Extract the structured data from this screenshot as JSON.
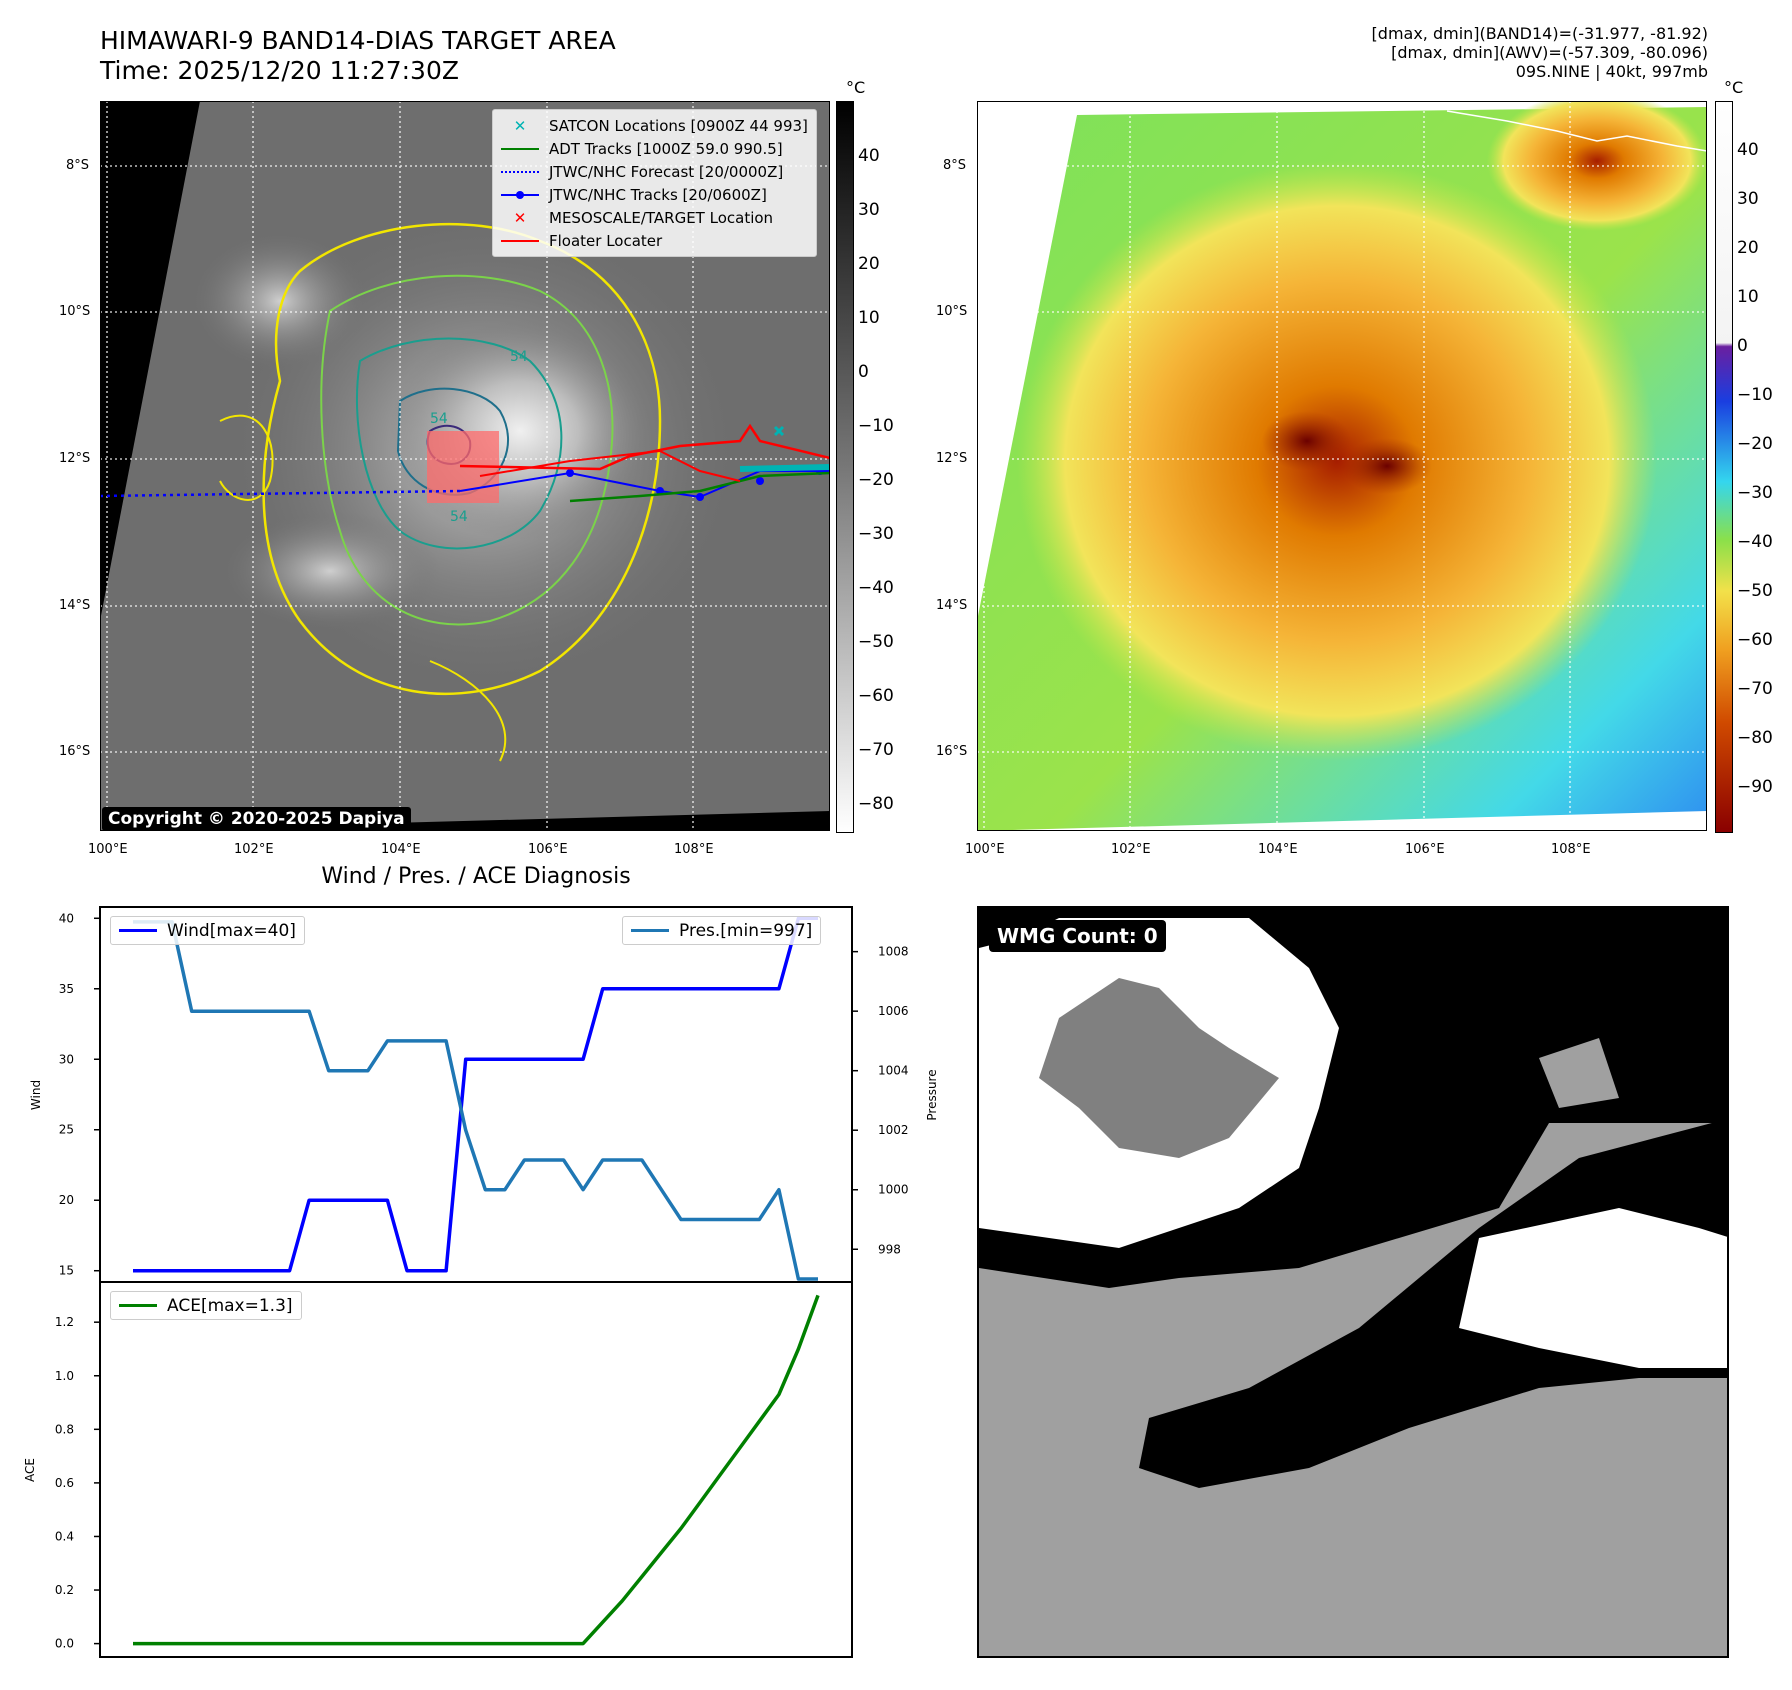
{
  "header": {
    "title": "HIMAWARI-9 BAND14-DIAS TARGET AREA",
    "time": "Time: 2025/12/20 11:27:30Z",
    "dmax_band14": "[dmax, dmin](BAND14)=(-31.977, -81.92)",
    "dmax_awv": "[dmax, dmin](AWV)=(-57.309, -80.096)",
    "storm": "09S.NINE | 40kt, 997mb"
  },
  "colors": {
    "wind": "#0000ff",
    "pressure": "#1f77b4",
    "ace": "#008000",
    "satcon": "#00b3b3",
    "adt": "#008000",
    "forecast": "#0000ff",
    "track": "#0000ff",
    "mesoscale": "#ff0000",
    "floater": "#ff0000"
  },
  "map": {
    "lon_labels": [
      "100°E",
      "102°E",
      "104°E",
      "106°E",
      "108°E"
    ],
    "lat_labels": [
      "8°S",
      "10°S",
      "12°S",
      "14°S",
      "16°S"
    ],
    "copyright": "Copyright © 2020-2025 Dapiya",
    "legend": [
      {
        "label": "SATCON Locations [0900Z 44 993]",
        "icon": "x-marker-cyan"
      },
      {
        "label": "ADT Tracks [1000Z 59.0 990.5]",
        "icon": "line-green"
      },
      {
        "label": "JTWC/NHC Forecast [20/0000Z]",
        "icon": "dotted-blue"
      },
      {
        "label": "JTWC/NHC Tracks [20/0600Z]",
        "icon": "line-dot-blue"
      },
      {
        "label": "MESOSCALE/TARGET Location",
        "icon": "x-marker-red"
      },
      {
        "label": "Floater Locater",
        "icon": "line-red"
      }
    ],
    "contour_labels": [
      "54",
      "54",
      "54"
    ]
  },
  "colorbar_gray": {
    "unit": "°C",
    "ticks": [
      "40",
      "30",
      "20",
      "10",
      "0",
      "−10",
      "−20",
      "−30",
      "−40",
      "−50",
      "−60",
      "−70",
      "−80"
    ]
  },
  "colorbar_color": {
    "unit": "°C",
    "ticks": [
      "40",
      "30",
      "20",
      "10",
      "0",
      "−10",
      "−20",
      "−30",
      "−40",
      "−50",
      "−60",
      "−70",
      "−80",
      "−90"
    ]
  },
  "wmg": {
    "label": "WMG Count: 0"
  },
  "chart_data": [
    {
      "type": "line",
      "title": "Wind / Pres. / ACE Diagnosis",
      "xlabel": "",
      "ylabel": "Wind",
      "ylabel_right": "Pressure",
      "ylim": [
        14.2,
        40.8
      ],
      "ylim_right": [
        996.9,
        1009.5
      ],
      "yticks": [
        15,
        20,
        25,
        30,
        35,
        40
      ],
      "yticks_right": [
        998,
        1000,
        1002,
        1004,
        1006,
        1008
      ],
      "x": [
        0,
        1,
        2,
        3,
        4,
        5,
        6,
        7,
        8,
        9,
        10,
        11,
        12,
        13,
        14,
        15,
        16,
        17,
        18,
        19,
        20,
        21,
        22,
        23,
        24,
        25,
        26,
        27,
        28,
        29,
        30,
        31,
        32,
        33,
        34,
        35
      ],
      "series": [
        {
          "name": "Wind[max=40]",
          "axis": "left",
          "values": [
            15,
            15,
            15,
            15,
            15,
            15,
            15,
            15,
            15,
            20,
            20,
            20,
            20,
            20,
            15,
            15,
            15,
            30,
            30,
            30,
            30,
            30,
            30,
            30,
            35,
            35,
            35,
            35,
            35,
            35,
            35,
            35,
            35,
            35,
            40,
            40
          ]
        },
        {
          "name": "Pres.[min=997]",
          "axis": "right",
          "values": [
            1009,
            1009,
            1009,
            1006,
            1006,
            1006,
            1006,
            1006,
            1006,
            1006,
            1004,
            1004,
            1004,
            1005,
            1005,
            1005,
            1005,
            1002,
            1000,
            1000,
            1001,
            1001,
            1001,
            1000,
            1001,
            1001,
            1001,
            1000,
            999,
            999,
            999,
            999,
            999,
            1000,
            997,
            997
          ]
        }
      ]
    },
    {
      "type": "line",
      "title": "",
      "xlabel": "",
      "ylabel": "ACE",
      "ylim": [
        -0.05,
        1.35
      ],
      "yticks": [
        "0.0",
        "0.2",
        "0.4",
        "0.6",
        "0.8",
        "1.0",
        "1.2"
      ],
      "x": [
        0,
        1,
        2,
        3,
        4,
        5,
        6,
        7,
        8,
        9,
        10,
        11,
        12,
        13,
        14,
        15,
        16,
        17,
        18,
        19,
        20,
        21,
        22,
        23,
        24,
        25,
        26,
        27,
        28,
        29,
        30,
        31,
        32,
        33,
        34,
        35
      ],
      "series": [
        {
          "name": "ACE[max=1.3]",
          "axis": "left",
          "values": [
            0,
            0,
            0,
            0,
            0,
            0,
            0,
            0,
            0,
            0,
            0,
            0,
            0,
            0,
            0,
            0,
            0,
            0,
            0,
            0,
            0,
            0,
            0,
            0,
            0.08,
            0.16,
            0.25,
            0.34,
            0.43,
            0.53,
            0.63,
            0.73,
            0.83,
            0.93,
            1.1,
            1.3
          ]
        }
      ]
    }
  ]
}
